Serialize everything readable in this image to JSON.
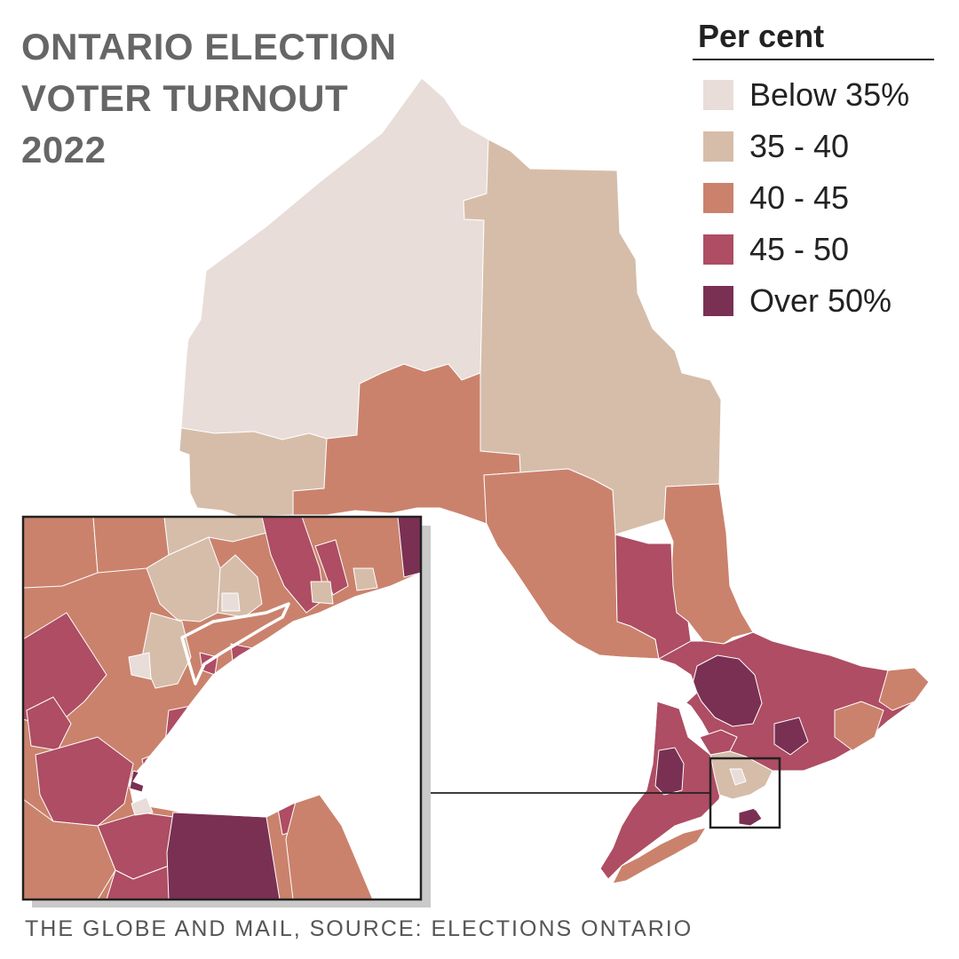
{
  "title": {
    "line1": "ONTARIO ELECTION",
    "line2": "VOTER TURNOUT",
    "line3": "2022"
  },
  "legend": {
    "title": "Per cent",
    "items": [
      {
        "label": "Below 35%",
        "color": "#e8ddd8"
      },
      {
        "label": "35 - 40",
        "color": "#d6bda9"
      },
      {
        "label": "40 - 45",
        "color": "#ca826c"
      },
      {
        "label": "45 - 50",
        "color": "#ae4d63"
      },
      {
        "label": "Over 50%",
        "color": "#7a3052"
      }
    ]
  },
  "map": {
    "subject": "Ontario electoral districts shaded by 2022 voter turnout",
    "inset_subject": "Greater Toronto and Hamilton area (enlarged)"
  },
  "source": "THE GLOBE AND MAIL, SOURCE: ELECTIONS ONTARIO"
}
